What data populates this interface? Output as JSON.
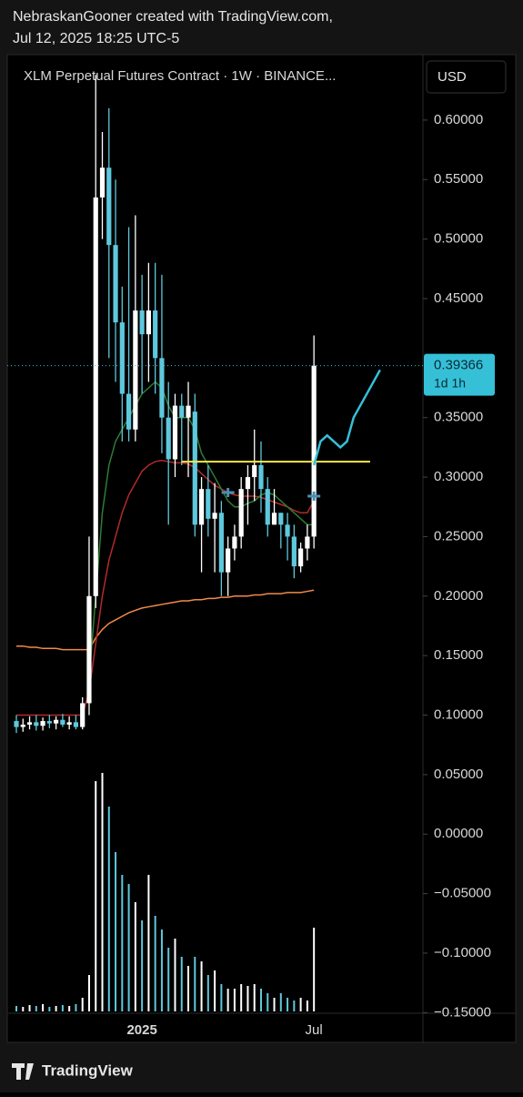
{
  "header": {
    "credit": "NebraskanGooner created with TradingView.com,",
    "timestamp": "Jul 12, 2025 18:25 UTC-5"
  },
  "footer": {
    "brand": "TradingView"
  },
  "chart_data": {
    "type": "candlestick",
    "title": "XLM Perpetual Futures Contract · 1W · BINANCE...",
    "currency": "USD",
    "categories": [
      null,
      null,
      null,
      null,
      null,
      null,
      null,
      null,
      null,
      null,
      null,
      null,
      null,
      null,
      null,
      null,
      null,
      null,
      null,
      "2025",
      null,
      null,
      null,
      null,
      null,
      null,
      null,
      null,
      null,
      null,
      null,
      null,
      null,
      null,
      null,
      null,
      null,
      null,
      null,
      null,
      null,
      null,
      null,
      null,
      null,
      "Jul"
    ],
    "open": [
      0.095,
      0.09,
      0.092,
      0.094,
      0.091,
      0.095,
      0.093,
      0.096,
      0.092,
      0.094,
      0.09,
      0.11,
      0.2,
      0.535,
      0.56,
      0.495,
      0.43,
      0.37,
      0.34,
      0.44,
      0.42,
      0.44,
      0.4,
      0.35,
      0.315,
      0.36,
      0.35,
      0.355,
      0.26,
      0.29,
      0.265,
      0.27,
      0.22,
      0.24,
      0.25,
      0.29,
      0.3,
      0.31,
      0.29,
      0.26,
      0.27,
      0.26,
      0.25,
      0.225,
      0.24,
      0.25
    ],
    "high": [
      0.1,
      0.097,
      0.099,
      0.1,
      0.098,
      0.1,
      0.099,
      0.101,
      0.099,
      0.1,
      0.115,
      0.25,
      0.638,
      0.59,
      0.61,
      0.55,
      0.46,
      0.51,
      0.52,
      0.47,
      0.48,
      0.48,
      0.47,
      0.38,
      0.37,
      0.37,
      0.38,
      0.37,
      0.3,
      0.31,
      0.295,
      0.28,
      0.25,
      0.26,
      0.3,
      0.31,
      0.34,
      0.33,
      0.3,
      0.29,
      0.27,
      0.27,
      0.26,
      0.245,
      0.26,
      0.419
    ],
    "low": [
      0.085,
      0.086,
      0.088,
      0.087,
      0.087,
      0.089,
      0.088,
      0.09,
      0.088,
      0.088,
      0.088,
      0.1,
      0.19,
      0.5,
      0.4,
      0.38,
      0.33,
      0.33,
      0.33,
      0.37,
      0.38,
      0.37,
      0.32,
      0.26,
      0.3,
      0.31,
      0.3,
      0.25,
      0.22,
      0.25,
      0.22,
      0.2,
      0.2,
      0.23,
      0.24,
      0.26,
      0.28,
      0.27,
      0.25,
      0.26,
      0.24,
      0.23,
      0.215,
      0.22,
      0.23,
      0.24
    ],
    "close": [
      0.09,
      0.092,
      0.094,
      0.091,
      0.095,
      0.093,
      0.096,
      0.092,
      0.094,
      0.09,
      0.11,
      0.2,
      0.535,
      0.56,
      0.495,
      0.43,
      0.37,
      0.34,
      0.44,
      0.42,
      0.44,
      0.4,
      0.35,
      0.315,
      0.36,
      0.35,
      0.36,
      0.26,
      0.29,
      0.265,
      0.27,
      0.22,
      0.24,
      0.25,
      0.29,
      0.3,
      0.31,
      0.29,
      0.26,
      0.27,
      0.26,
      0.25,
      0.225,
      0.24,
      0.25,
      0.39366
    ],
    "volume": [
      6,
      5,
      7,
      6,
      8,
      5,
      6,
      7,
      6,
      8,
      15,
      40,
      253,
      262,
      225,
      175,
      150,
      140,
      120,
      100,
      150,
      105,
      90,
      70,
      80,
      60,
      50,
      60,
      55,
      40,
      45,
      30,
      25,
      25,
      30,
      28,
      30,
      25,
      20,
      15,
      20,
      15,
      12,
      15,
      12,
      92
    ],
    "volume_lim": [
      0,
      300
    ],
    "up_color": "#ffffff",
    "down_color": "#5ec8dd",
    "lines": [
      {
        "color": "#f08a4b",
        "values": [
          0.158,
          0.158,
          0.157,
          0.157,
          0.156,
          0.156,
          0.156,
          0.155,
          0.155,
          0.155,
          0.155,
          0.155,
          0.165,
          0.172,
          0.177,
          0.18,
          0.183,
          0.186,
          0.188,
          0.19,
          0.191,
          0.192,
          0.193,
          0.194,
          0.195,
          0.196,
          0.196,
          0.197,
          0.197,
          0.198,
          0.198,
          0.199,
          0.199,
          0.2,
          0.2,
          0.2,
          0.201,
          0.201,
          0.202,
          0.202,
          0.202,
          0.203,
          0.203,
          0.203,
          0.204,
          0.205
        ]
      },
      {
        "color": "#b32a2a",
        "values": [
          0.1,
          0.1,
          0.1,
          0.1,
          0.1,
          0.1,
          0.1,
          0.1,
          0.1,
          0.1,
          0.1,
          0.12,
          0.16,
          0.2,
          0.23,
          0.25,
          0.27,
          0.285,
          0.295,
          0.305,
          0.31,
          0.313,
          0.314,
          0.313,
          0.312,
          0.312,
          0.311,
          0.308,
          0.303,
          0.298,
          0.293,
          0.29,
          0.287,
          0.285,
          0.284,
          0.284,
          0.284,
          0.283,
          0.281,
          0.279,
          0.277,
          0.275,
          0.272,
          0.27,
          0.27,
          0.28
        ]
      },
      {
        "color": "#2e7d32",
        "values": [
          null,
          null,
          null,
          null,
          null,
          null,
          null,
          null,
          null,
          null,
          null,
          0.13,
          0.2,
          0.27,
          0.31,
          0.33,
          0.34,
          0.35,
          0.36,
          0.37,
          0.375,
          0.38,
          0.375,
          0.36,
          0.35,
          0.35,
          0.35,
          0.34,
          0.32,
          0.31,
          0.3,
          0.29,
          0.28,
          0.275,
          0.275,
          0.278,
          0.28,
          0.285,
          0.287,
          0.285,
          0.28,
          0.275,
          0.27,
          0.265,
          0.26,
          0.26
        ]
      }
    ],
    "hline": {
      "value": 0.313,
      "from": 25,
      "to": 53.5,
      "color": "#f5e84a"
    },
    "projection": {
      "color": "#35c0d8",
      "x": [
        45,
        46,
        47,
        48,
        49,
        50,
        51,
        53,
        55
      ],
      "values": [
        0.31,
        0.33,
        0.335,
        0.33,
        0.325,
        0.33,
        0.35,
        0.37,
        0.39
      ]
    },
    "markers": [
      {
        "x": 32,
        "value": 0.287
      },
      {
        "x": 45,
        "value": 0.284
      }
    ],
    "last_price": {
      "value": 0.39366,
      "label": "0.39366",
      "countdown": "1d 1h",
      "color": "#35c0d8"
    },
    "ylim": [
      -0.175,
      0.655
    ],
    "yticks": [
      {
        "value": 0.6,
        "label": "0.60000"
      },
      {
        "value": 0.55,
        "label": "0.55000"
      },
      {
        "value": 0.5,
        "label": "0.50000"
      },
      {
        "value": 0.45,
        "label": "0.45000"
      },
      {
        "value": 0.35,
        "label": "0.35000"
      },
      {
        "value": 0.3,
        "label": "0.30000"
      },
      {
        "value": 0.25,
        "label": "0.25000"
      },
      {
        "value": 0.2,
        "label": "0.20000"
      },
      {
        "value": 0.15,
        "label": "0.15000"
      },
      {
        "value": 0.1,
        "label": "0.10000"
      },
      {
        "value": 0.05,
        "label": "0.05000"
      },
      {
        "value": 0,
        "label": "0.00000"
      },
      {
        "value": -0.05,
        "label": "−0.05000"
      },
      {
        "value": -0.1,
        "label": "−0.10000"
      },
      {
        "value": -0.15,
        "label": "−0.15000"
      }
    ]
  }
}
